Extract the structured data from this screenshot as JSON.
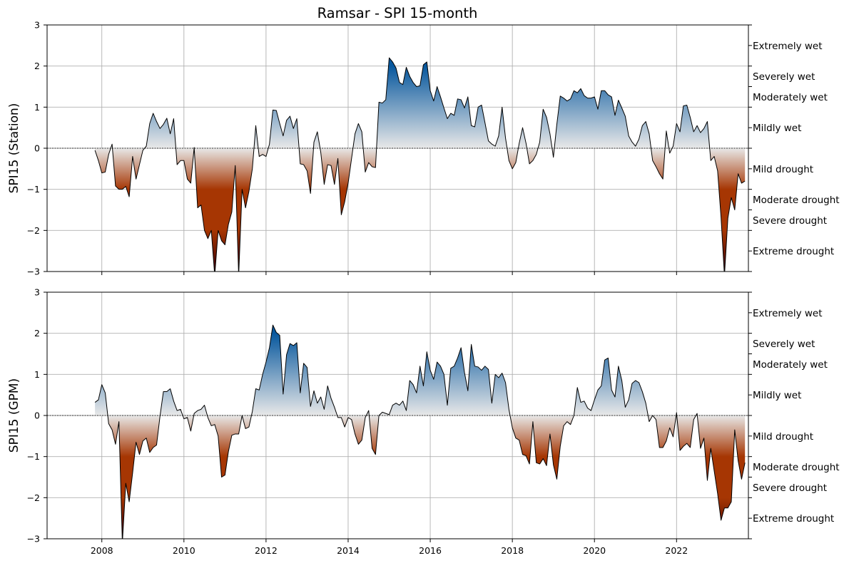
{
  "title": "Ramsar - SPI 15-month",
  "colors": {
    "wet": "#08589e",
    "drought": "#a63603",
    "extreme_drought": "#3d0000",
    "neutral": "#e8e8e8",
    "line": "#000000",
    "grid": "#b0b0b0"
  },
  "chart_data": [
    {
      "type": "area",
      "ylabel": "SPI15 (Station)",
      "ylim": [
        -3,
        3
      ],
      "xlim": [
        "2006-09",
        "2023-10"
      ],
      "grid": true,
      "x_ticks": [
        "2008",
        "2010",
        "2012",
        "2014",
        "2016",
        "2018",
        "2020",
        "2022"
      ],
      "y_ticks": [
        -3,
        -2,
        -1,
        0,
        1,
        2,
        3
      ],
      "y_tick_labels": [
        "−3",
        "−2",
        "−1",
        "0",
        "1",
        "2",
        "3"
      ],
      "class_labels": [
        {
          "label": "Extremely wet",
          "y": 2.5
        },
        {
          "label": "Severely wet",
          "y": 1.75
        },
        {
          "label": "Moderately wet",
          "y": 1.25
        },
        {
          "label": "Mildly wet",
          "y": 0.5
        },
        {
          "label": "Mild drought",
          "y": -0.5
        },
        {
          "label": "Moderate drought",
          "y": -1.25
        },
        {
          "label": "Severe drought",
          "y": -1.75
        },
        {
          "label": "Extreme drought",
          "y": -2.5
        }
      ],
      "series": [
        {
          "start": "2007-11",
          "values": [
            -0.05,
            -0.3,
            -0.6,
            -0.58,
            -0.15,
            0.1,
            -0.92,
            -1.0,
            -1.0,
            -0.93,
            -1.18,
            -0.2,
            -0.75,
            -0.4,
            -0.05,
            0.05,
            0.6,
            0.85,
            0.65,
            0.48,
            0.58,
            0.73,
            0.35,
            0.72,
            -0.4,
            -0.3,
            -0.3,
            -0.75,
            -0.85,
            0.02,
            -1.45,
            -1.38,
            -2.0,
            -2.2,
            -2.0,
            -3.1,
            -2.0,
            -2.25,
            -2.35,
            -1.85,
            -1.55,
            -0.42,
            -3.1,
            -1.0,
            -1.45,
            -1.05,
            -0.5,
            0.55,
            -0.2,
            -0.15,
            -0.2,
            0.1,
            0.93,
            0.92,
            0.6,
            0.3,
            0.68,
            0.78,
            0.48,
            0.72,
            -0.38,
            -0.4,
            -0.55,
            -1.1,
            0.15,
            0.4,
            -0.1,
            -0.88,
            -0.4,
            -0.42,
            -0.88,
            -0.25,
            -1.62,
            -1.3,
            -0.85,
            -0.25,
            0.35,
            0.6,
            0.4,
            -0.58,
            -0.35,
            -0.45,
            -0.47,
            1.12,
            1.1,
            1.18,
            2.2,
            2.1,
            1.95,
            1.6,
            1.55,
            1.97,
            1.75,
            1.6,
            1.5,
            1.52,
            2.03,
            2.1,
            1.4,
            1.15,
            1.5,
            1.25,
            0.98,
            0.72,
            0.85,
            0.8,
            1.2,
            1.18,
            0.98,
            1.25,
            0.55,
            0.52,
            1.0,
            1.05,
            0.62,
            0.18,
            0.1,
            0.05,
            0.3,
            1.0,
            0.25,
            -0.3,
            -0.5,
            -0.35,
            0.12,
            0.5,
            0.12,
            -0.38,
            -0.3,
            -0.15,
            0.15,
            0.95,
            0.75,
            0.35,
            -0.22,
            0.58,
            1.27,
            1.22,
            1.15,
            1.2,
            1.4,
            1.35,
            1.45,
            1.28,
            1.22,
            1.22,
            1.25,
            0.95,
            1.4,
            1.4,
            1.3,
            1.25,
            0.8,
            1.17,
            0.98,
            0.78,
            0.3,
            0.15,
            0.05,
            0.22,
            0.55,
            0.65,
            0.35,
            -0.3,
            -0.45,
            -0.62,
            -0.75,
            0.42,
            -0.12,
            0.05,
            0.6,
            0.4,
            1.03,
            1.05,
            0.75,
            0.4,
            0.55,
            0.38,
            0.48,
            0.65,
            -0.3,
            -0.2,
            -0.55,
            -1.68,
            -3.1,
            -1.7,
            -1.2,
            -1.5,
            -0.62,
            -0.85,
            -0.8
          ]
        }
      ]
    },
    {
      "type": "area",
      "ylabel": "SPI15 (GPM)",
      "ylim": [
        -3,
        3
      ],
      "xlim": [
        "2006-09",
        "2023-10"
      ],
      "grid": true,
      "x_ticks": [
        "2008",
        "2010",
        "2012",
        "2014",
        "2016",
        "2018",
        "2020",
        "2022"
      ],
      "y_ticks": [
        -3,
        -2,
        -1,
        0,
        1,
        2,
        3
      ],
      "y_tick_labels": [
        "−3",
        "−2",
        "−1",
        "0",
        "1",
        "2",
        "3"
      ],
      "class_labels": [
        {
          "label": "Extremely wet",
          "y": 2.5
        },
        {
          "label": "Severely wet",
          "y": 1.75
        },
        {
          "label": "Moderately wet",
          "y": 1.25
        },
        {
          "label": "Mildly wet",
          "y": 0.5
        },
        {
          "label": "Mild drought",
          "y": -0.5
        },
        {
          "label": "Moderate drought",
          "y": -1.25
        },
        {
          "label": "Severe drought",
          "y": -1.75
        },
        {
          "label": "Extreme drought",
          "y": -2.5
        }
      ],
      "series": [
        {
          "start": "2007-11",
          "values": [
            0.32,
            0.38,
            0.75,
            0.55,
            -0.2,
            -0.35,
            -0.7,
            -0.15,
            -3.1,
            -1.65,
            -2.1,
            -1.4,
            -0.65,
            -0.95,
            -0.62,
            -0.55,
            -0.9,
            -0.78,
            -0.72,
            -0.02,
            0.58,
            0.58,
            0.65,
            0.35,
            0.12,
            0.15,
            -0.08,
            -0.05,
            -0.38,
            0.05,
            0.12,
            0.15,
            0.25,
            -0.05,
            -0.25,
            -0.22,
            -0.5,
            -1.5,
            -1.45,
            -0.88,
            -0.48,
            -0.45,
            -0.45,
            0.0,
            -0.32,
            -0.28,
            0.1,
            0.65,
            0.62,
            1.0,
            1.3,
            1.65,
            2.2,
            2.02,
            1.95,
            0.52,
            1.48,
            1.75,
            1.7,
            1.77,
            0.55,
            1.27,
            1.17,
            0.22,
            0.6,
            0.3,
            0.45,
            0.15,
            0.72,
            0.42,
            0.2,
            -0.05,
            -0.05,
            -0.28,
            -0.05,
            -0.1,
            -0.45,
            -0.7,
            -0.6,
            -0.05,
            0.12,
            -0.8,
            -0.95,
            0.0,
            0.08,
            0.05,
            0.02,
            0.25,
            0.3,
            0.25,
            0.35,
            0.12,
            0.85,
            0.75,
            0.55,
            1.2,
            0.72,
            1.55,
            1.1,
            0.88,
            1.3,
            1.2,
            1.0,
            0.25,
            1.15,
            1.2,
            1.4,
            1.65,
            1.05,
            0.6,
            1.73,
            1.2,
            1.18,
            1.1,
            1.2,
            1.12,
            0.3,
            1.0,
            0.92,
            1.03,
            0.8,
            0.15,
            -0.3,
            -0.55,
            -0.6,
            -0.95,
            -0.98,
            -1.18,
            -0.15,
            -1.15,
            -1.18,
            -1.05,
            -1.22,
            -0.45,
            -1.2,
            -1.55,
            -0.75,
            -0.25,
            -0.15,
            -0.22,
            0.0,
            0.68,
            0.32,
            0.35,
            0.18,
            0.12,
            0.38,
            0.62,
            0.72,
            1.35,
            1.4,
            0.62,
            0.45,
            1.2,
            0.85,
            0.2,
            0.38,
            0.78,
            0.85,
            0.8,
            0.58,
            0.3,
            -0.15,
            0.0,
            -0.1,
            -0.78,
            -0.78,
            -0.62,
            -0.3,
            -0.52,
            0.07,
            -0.85,
            -0.75,
            -0.68,
            -0.78,
            -0.1,
            0.05,
            -0.8,
            -0.55,
            -1.58,
            -0.8,
            -1.35,
            -1.9,
            -2.55,
            -2.25,
            -2.25,
            -2.1,
            -0.35,
            -1.1,
            -1.55,
            -1.15
          ]
        }
      ]
    }
  ]
}
